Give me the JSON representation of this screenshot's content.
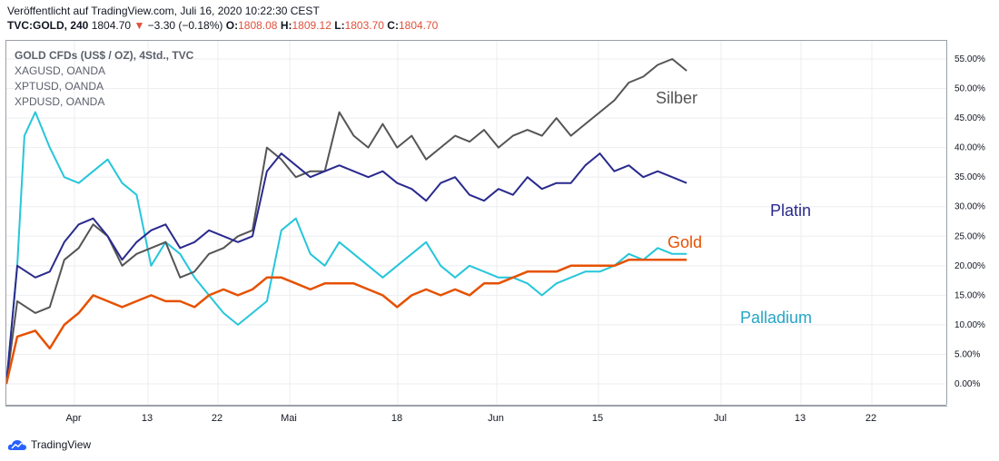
{
  "header": {
    "published": "Veröffentlicht auf TradingView.com, Juli 16, 2020 10:22:30 CEST",
    "symbol": "TVC:GOLD, 240",
    "last": "1804.70",
    "change": "−3.30 (−0.18%)",
    "o_label": "O:",
    "o_value": "1808.08",
    "h_label": "H:",
    "h_value": "1809.12",
    "l_label": "L:",
    "l_value": "1803.70",
    "c_label": "C:",
    "c_value": "1804.70"
  },
  "legend": [
    "GOLD CFDs (US$ / OZ), 4Std., TVC",
    "XAGUSD, OANDA",
    "XPTUSD, OANDA",
    "XPDUSD, OANDA"
  ],
  "footer": {
    "brand": "TradingView"
  },
  "colors": {
    "gold": "#e65100",
    "silber": "#555555",
    "platin": "#2a2a8e",
    "palladium": "#26c6da",
    "down": "#e0503c"
  },
  "chart_data": {
    "type": "line",
    "y_unit": "%",
    "ylim": [
      -5,
      56
    ],
    "y_ticks": [
      "55.00%",
      "50.00%",
      "45.00%",
      "40.00%",
      "35.00%",
      "30.00%",
      "25.00%",
      "20.00%",
      "15.00%",
      "10.00%",
      "5.00%",
      "0.00%"
    ],
    "x_ticks": [
      "Apr",
      "13",
      "22",
      "Mai",
      "18",
      "Jun",
      "15",
      "Jul",
      "13",
      "22"
    ],
    "grid": true,
    "series": [
      {
        "name": "Silber",
        "key": "silber",
        "x": [
          0,
          3,
          8,
          12,
          16,
          20,
          24,
          28,
          32,
          36,
          40,
          44,
          48,
          52,
          56,
          60,
          64,
          68,
          72,
          76,
          80,
          84,
          88,
          92,
          96,
          100,
          104,
          108,
          112,
          116,
          120,
          124,
          128,
          132,
          136,
          140,
          144,
          148,
          152,
          156,
          160,
          164,
          168,
          172,
          176,
          180,
          184,
          188
        ],
        "values": [
          0,
          14,
          12,
          13,
          21,
          23,
          27,
          25,
          20,
          22,
          23,
          24,
          18,
          19,
          22,
          23,
          25,
          26,
          40,
          38,
          35,
          36,
          36,
          46,
          42,
          40,
          44,
          40,
          42,
          38,
          40,
          42,
          41,
          43,
          40,
          42,
          43,
          42,
          45,
          42,
          44,
          46,
          48,
          51,
          52,
          54,
          55,
          53
        ]
      },
      {
        "name": "Platin",
        "key": "platin",
        "x": [
          0,
          3,
          8,
          12,
          16,
          20,
          24,
          28,
          32,
          36,
          40,
          44,
          48,
          52,
          56,
          60,
          64,
          68,
          72,
          76,
          80,
          84,
          88,
          92,
          96,
          100,
          104,
          108,
          112,
          116,
          120,
          124,
          128,
          132,
          136,
          140,
          144,
          148,
          152,
          156,
          160,
          164,
          168,
          172,
          176,
          180,
          184,
          188
        ],
        "values": [
          0,
          20,
          18,
          19,
          24,
          27,
          28,
          25,
          21,
          24,
          26,
          27,
          23,
          24,
          26,
          25,
          24,
          25,
          36,
          39,
          37,
          35,
          36,
          37,
          36,
          35,
          36,
          34,
          33,
          31,
          34,
          35,
          32,
          31,
          33,
          32,
          35,
          33,
          34,
          34,
          37,
          39,
          36,
          37,
          35,
          36,
          35,
          34
        ]
      },
      {
        "name": "Gold",
        "key": "gold",
        "x": [
          0,
          3,
          8,
          12,
          16,
          20,
          24,
          28,
          32,
          36,
          40,
          44,
          48,
          52,
          56,
          60,
          64,
          68,
          72,
          76,
          80,
          84,
          88,
          92,
          96,
          100,
          104,
          108,
          112,
          116,
          120,
          124,
          128,
          132,
          136,
          140,
          144,
          148,
          152,
          156,
          160,
          164,
          168,
          172,
          176,
          180,
          184,
          188
        ],
        "values": [
          0,
          8,
          9,
          6,
          10,
          12,
          15,
          14,
          13,
          14,
          15,
          14,
          14,
          13,
          15,
          16,
          15,
          16,
          18,
          18,
          17,
          16,
          17,
          17,
          17,
          16,
          15,
          13,
          15,
          16,
          15,
          16,
          15,
          17,
          17,
          18,
          19,
          19,
          19,
          20,
          20,
          20,
          20,
          21,
          21,
          21,
          21,
          21
        ]
      },
      {
        "name": "Palladium",
        "key": "palladium",
        "x": [
          0,
          3,
          5,
          8,
          12,
          16,
          20,
          24,
          28,
          32,
          36,
          40,
          44,
          48,
          52,
          56,
          60,
          64,
          68,
          72,
          76,
          80,
          84,
          88,
          92,
          96,
          100,
          104,
          108,
          112,
          116,
          120,
          124,
          128,
          132,
          136,
          140,
          144,
          148,
          152,
          156,
          160,
          164,
          168,
          172,
          176,
          180,
          184,
          188
        ],
        "values": [
          0,
          20,
          42,
          46,
          40,
          35,
          34,
          36,
          38,
          34,
          32,
          20,
          24,
          22,
          18,
          15,
          12,
          10,
          12,
          14,
          26,
          28,
          22,
          20,
          24,
          22,
          20,
          18,
          20,
          22,
          24,
          20,
          18,
          20,
          19,
          18,
          18,
          17,
          15,
          17,
          18,
          19,
          19,
          20,
          22,
          21,
          23,
          22,
          22
        ]
      }
    ]
  }
}
